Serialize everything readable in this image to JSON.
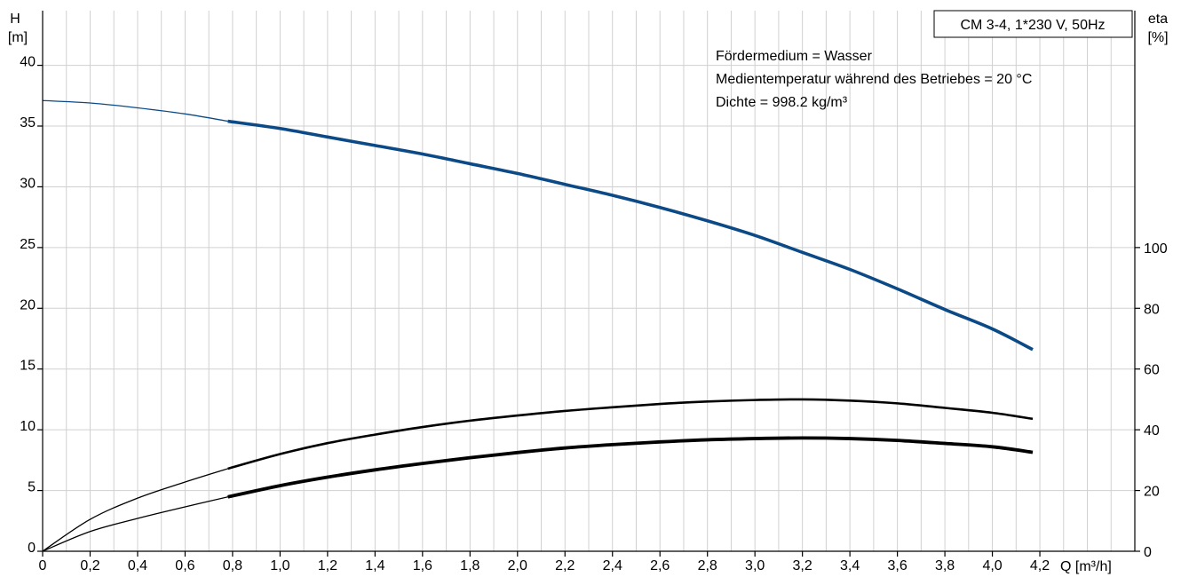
{
  "chart_data": {
    "type": "line",
    "title": "CM 3-4, 1*230 V, 50Hz",
    "notes": [
      "Fördermedium = Wasser",
      "Medientemperatur während des Betriebes = 20 °C",
      "Dichte = 998.2 kg/m³"
    ],
    "x_axis": {
      "label": "Q [m³/h]",
      "range": [
        0,
        4.6
      ],
      "ticks": [
        0,
        0.2,
        0.4,
        0.6,
        0.8,
        1.0,
        1.2,
        1.4,
        1.6,
        1.8,
        2.0,
        2.2,
        2.4,
        2.6,
        2.8,
        3.0,
        3.2,
        3.4,
        3.6,
        3.8,
        4.0,
        4.2
      ],
      "tick_labels": [
        "0",
        "0,2",
        "0,4",
        "0,6",
        "0,8",
        "1,0",
        "1,2",
        "1,4",
        "1,6",
        "1,8",
        "2,0",
        "2,2",
        "2,4",
        "2,6",
        "2,8",
        "3,0",
        "3,2",
        "3,4",
        "3,6",
        "3,8",
        "4,0",
        "4,2"
      ]
    },
    "y_left": {
      "label_line1": "H",
      "label_line2": "[m]",
      "range": [
        0,
        44.5
      ],
      "ticks": [
        0,
        5,
        10,
        15,
        20,
        25,
        30,
        35,
        40
      ],
      "tick_labels": [
        "0",
        "5",
        "10",
        "15",
        "20",
        "25",
        "30",
        "35",
        "40"
      ]
    },
    "y_right": {
      "label_line1": "eta",
      "label_line2": "[%]",
      "range": [
        0,
        178
      ],
      "ticks": [
        0,
        20,
        40,
        60,
        80,
        100
      ],
      "tick_labels": [
        "0",
        "20",
        "40",
        "60",
        "80",
        "100"
      ]
    },
    "grid": true,
    "series": [
      {
        "axis": "left",
        "color": "#0b4a86",
        "op_start": 0.78,
        "points": [
          [
            0,
            37.1
          ],
          [
            0.2,
            36.9
          ],
          [
            0.4,
            36.5
          ],
          [
            0.6,
            36.0
          ],
          [
            0.78,
            35.4
          ],
          [
            1.0,
            34.8
          ],
          [
            1.2,
            34.1
          ],
          [
            1.4,
            33.4
          ],
          [
            1.6,
            32.7
          ],
          [
            1.8,
            31.9
          ],
          [
            2.0,
            31.1
          ],
          [
            2.2,
            30.2
          ],
          [
            2.4,
            29.3
          ],
          [
            2.6,
            28.3
          ],
          [
            2.8,
            27.2
          ],
          [
            3.0,
            26.0
          ],
          [
            3.2,
            24.6
          ],
          [
            3.4,
            23.2
          ],
          [
            3.6,
            21.6
          ],
          [
            3.8,
            19.9
          ],
          [
            4.0,
            18.3
          ],
          [
            4.17,
            16.6
          ]
        ]
      },
      {
        "axis": "right",
        "color": "#000000",
        "op_start": 0.78,
        "points": [
          [
            0,
            0
          ],
          [
            0.2,
            10.5
          ],
          [
            0.4,
            17.5
          ],
          [
            0.6,
            22.8
          ],
          [
            0.78,
            27.2
          ],
          [
            1.0,
            32.0
          ],
          [
            1.2,
            35.6
          ],
          [
            1.4,
            38.4
          ],
          [
            1.6,
            40.9
          ],
          [
            1.8,
            43.0
          ],
          [
            2.0,
            44.7
          ],
          [
            2.2,
            46.2
          ],
          [
            2.4,
            47.4
          ],
          [
            2.6,
            48.5
          ],
          [
            2.8,
            49.3
          ],
          [
            3.0,
            49.8
          ],
          [
            3.2,
            50.0
          ],
          [
            3.4,
            49.6
          ],
          [
            3.6,
            48.7
          ],
          [
            3.8,
            47.2
          ],
          [
            4.0,
            45.6
          ],
          [
            4.17,
            43.6
          ]
        ]
      },
      {
        "axis": "right",
        "color": "#000000",
        "op_start": 0.78,
        "points": [
          [
            0,
            0
          ],
          [
            0.2,
            6.5
          ],
          [
            0.4,
            10.8
          ],
          [
            0.6,
            14.6
          ],
          [
            0.78,
            17.9
          ],
          [
            1.0,
            21.6
          ],
          [
            1.2,
            24.4
          ],
          [
            1.4,
            26.8
          ],
          [
            1.6,
            28.9
          ],
          [
            1.8,
            30.8
          ],
          [
            2.0,
            32.5
          ],
          [
            2.2,
            34.0
          ],
          [
            2.4,
            35.1
          ],
          [
            2.6,
            36.0
          ],
          [
            2.8,
            36.7
          ],
          [
            3.0,
            37.1
          ],
          [
            3.2,
            37.3
          ],
          [
            3.4,
            37.1
          ],
          [
            3.6,
            36.5
          ],
          [
            3.8,
            35.5
          ],
          [
            4.0,
            34.4
          ],
          [
            4.17,
            32.6
          ]
        ]
      }
    ]
  }
}
